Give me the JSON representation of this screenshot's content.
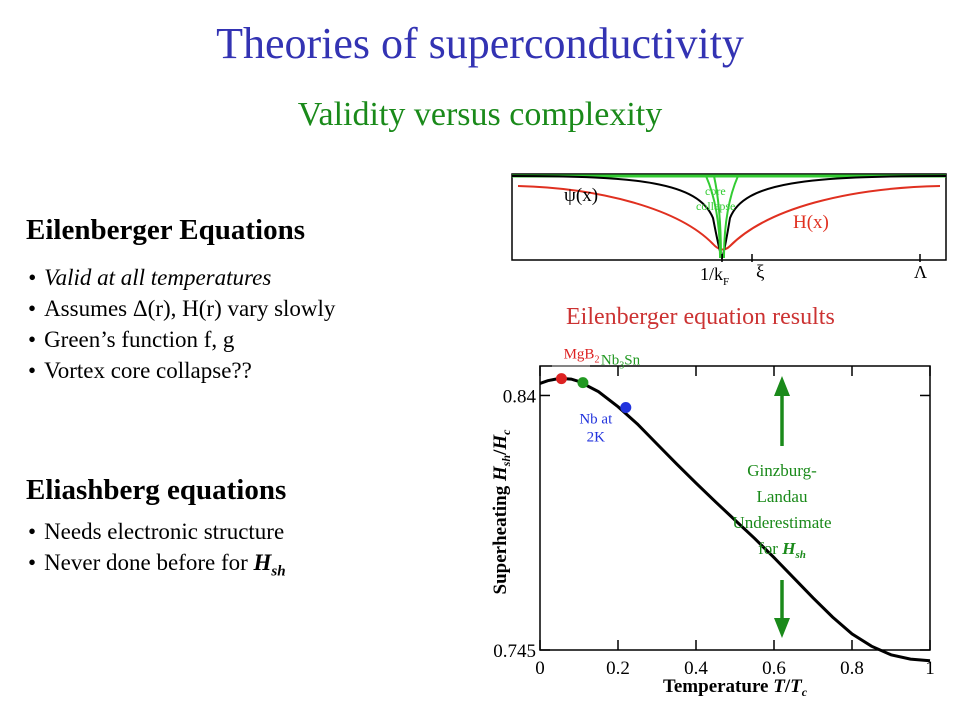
{
  "slide": {
    "title": "Theories of superconductivity",
    "subtitle": "Validity versus complexity"
  },
  "left": {
    "eilenberger": {
      "heading": "Eilenberger Equations",
      "items": [
        "Valid at all temperatures",
        "Assumes  Δ(r), H(r) vary slowly",
        "Green’s function f, g",
        "Vortex core collapse??"
      ]
    },
    "eliashberg": {
      "heading": "Eliashberg equations",
      "items": [
        "Needs electronic structure",
        "Never done before for"
      ],
      "hsh_symbol": "H",
      "hsh_sub": "sh"
    }
  },
  "inset": {
    "labels": {
      "psi": "ψ(x)",
      "core1": "core",
      "core2": "collapse",
      "hx": "H(x)",
      "kf_main": "1/k",
      "kf_sub": "F",
      "xi": "ξ",
      "lambda": "Λ"
    },
    "colors": {
      "psi": "#000000",
      "field": "#e03020",
      "core": "#33cc33"
    }
  },
  "chart_title": "Eilenberger equation results",
  "chart_data": {
    "type": "line",
    "xlabel": "Temperature T/T_c",
    "xlabel_main": "Temperature ",
    "xlabel_var": "T",
    "xlabel_slash": "/",
    "xlabel_var2": "T",
    "xlabel_sub": "c",
    "ylabel_main": "Superheating ",
    "ylabel_var": "H",
    "ylabel_sub": "sh",
    "ylabel_slash": "/",
    "ylabel_var2": "H",
    "ylabel_sub2": "c",
    "xlim": [
      0,
      1
    ],
    "ylim": [
      0.745,
      0.851
    ],
    "x_ticks": [
      "0",
      "0.2",
      "0.4",
      "0.6",
      "0.8",
      "1"
    ],
    "y_ticks": [
      "0.84",
      "0.745"
    ],
    "series": [
      {
        "x": [
          0,
          0.02,
          0.04,
          0.06,
          0.08,
          0.1,
          0.15,
          0.2,
          0.25,
          0.3,
          0.35,
          0.4,
          0.45,
          0.5,
          0.55,
          0.6,
          0.65,
          0.7,
          0.75,
          0.8,
          0.85,
          0.9,
          0.95,
          1.0
        ],
        "y": [
          0.8445,
          0.8455,
          0.8461,
          0.8463,
          0.8461,
          0.8452,
          0.8414,
          0.8358,
          0.8293,
          0.8219,
          0.8145,
          0.8073,
          0.8003,
          0.7935,
          0.7867,
          0.7795,
          0.772,
          0.7645,
          0.7573,
          0.751,
          0.7464,
          0.7432,
          0.7416,
          0.741
        ]
      }
    ],
    "points": [
      {
        "label": "MgB",
        "sub": "2",
        "x": 0.055,
        "y": 0.8463,
        "color": "#dd2222"
      },
      {
        "label": "Nb",
        "sub": "3",
        "label2": "Sn",
        "x": 0.11,
        "y": 0.8448,
        "color": "#229922"
      },
      {
        "label": "Nb at",
        "label2": "2K",
        "x": 0.22,
        "y": 0.8355,
        "color": "#2233dd"
      }
    ],
    "annotation": {
      "lines": [
        "Ginzburg-",
        "Landau",
        "Underestimate",
        "for"
      ],
      "hsh_symbol": "H",
      "hsh_sub": "sh",
      "color": "#1a8a1a"
    }
  }
}
